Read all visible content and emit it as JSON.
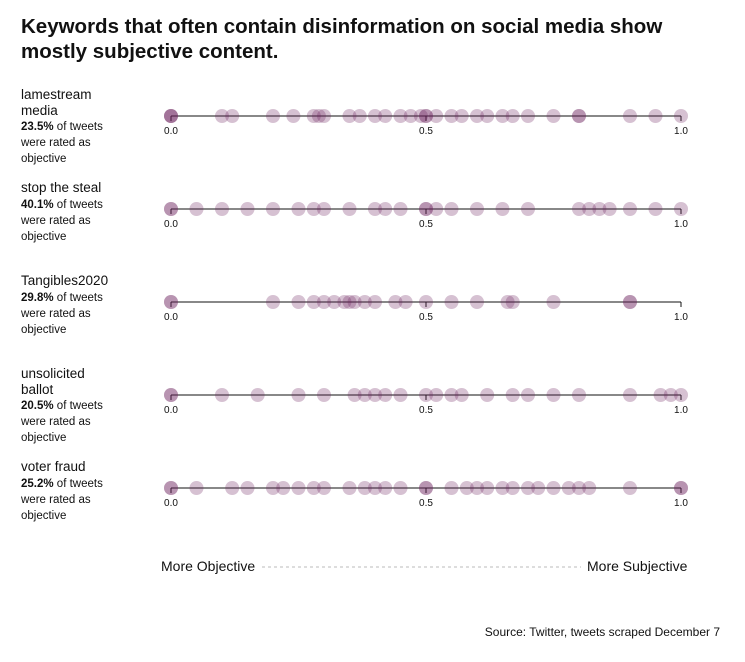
{
  "title": "Keywords that often contain disinformation on social media show mostly subjective content.",
  "source": "Source: Twitter, tweets scraped December 7",
  "axis": {
    "left_label": "More Objective",
    "right_label": "More Subjective"
  },
  "colors": {
    "dot": "#6b1f5c",
    "line": "#111111",
    "dashed": "#bbbbbb"
  },
  "rows": [
    {
      "keyword": "lamestream media",
      "percent": "23.5%",
      "suffix": " of tweets were rated as objective"
    },
    {
      "keyword": "stop the steal",
      "percent": "40.1%",
      "suffix": " of tweets were rated as objective"
    },
    {
      "keyword": "Tangibles2020",
      "percent": "29.8%",
      "suffix": " of tweets were rated as objective"
    },
    {
      "keyword": "unsolicited ballot",
      "percent": "20.5%",
      "suffix": " of tweets were rated as objective"
    },
    {
      "keyword": "voter fraud",
      "percent": "25.2%",
      "suffix": " of tweets were rated as objective"
    }
  ],
  "chart_data": {
    "type": "scatter",
    "title": "Keywords that often contain disinformation on social media show mostly subjective content.",
    "xlim": [
      0,
      1
    ],
    "x_ticks": [
      "0.0",
      "0.5",
      "1.0"
    ],
    "series": [
      {
        "name": "lamestream media",
        "values": [
          0,
          0,
          0,
          0.1,
          0.12,
          0.2,
          0.24,
          0.28,
          0.29,
          0.3,
          0.35,
          0.37,
          0.4,
          0.42,
          0.45,
          0.47,
          0.49,
          0.5,
          0.5,
          0.52,
          0.55,
          0.57,
          0.6,
          0.62,
          0.65,
          0.67,
          0.7,
          0.75,
          0.8,
          0.8,
          0.9,
          0.95,
          1.0
        ]
      },
      {
        "name": "stop the steal",
        "values": [
          0,
          0,
          0.05,
          0.1,
          0.15,
          0.2,
          0.25,
          0.28,
          0.3,
          0.35,
          0.4,
          0.42,
          0.45,
          0.5,
          0.5,
          0.52,
          0.55,
          0.6,
          0.65,
          0.7,
          0.8,
          0.82,
          0.84,
          0.86,
          0.9,
          0.95,
          1.0
        ]
      },
      {
        "name": "Tangibles2020",
        "values": [
          0,
          0,
          0.2,
          0.25,
          0.28,
          0.3,
          0.32,
          0.34,
          0.35,
          0.36,
          0.38,
          0.4,
          0.44,
          0.46,
          0.5,
          0.55,
          0.6,
          0.66,
          0.67,
          0.75,
          0.9,
          0.9
        ]
      },
      {
        "name": "unsolicited ballot",
        "values": [
          0,
          0,
          0.1,
          0.17,
          0.25,
          0.3,
          0.36,
          0.38,
          0.4,
          0.42,
          0.45,
          0.5,
          0.52,
          0.55,
          0.57,
          0.62,
          0.67,
          0.7,
          0.75,
          0.8,
          0.9,
          0.96,
          0.98,
          1.0
        ]
      },
      {
        "name": "voter fraud",
        "values": [
          0,
          0,
          0.05,
          0.12,
          0.15,
          0.2,
          0.22,
          0.25,
          0.28,
          0.3,
          0.35,
          0.38,
          0.4,
          0.42,
          0.45,
          0.5,
          0.5,
          0.55,
          0.58,
          0.6,
          0.62,
          0.65,
          0.67,
          0.7,
          0.72,
          0.75,
          0.78,
          0.8,
          0.82,
          0.9,
          1.0,
          1.0
        ]
      }
    ]
  }
}
